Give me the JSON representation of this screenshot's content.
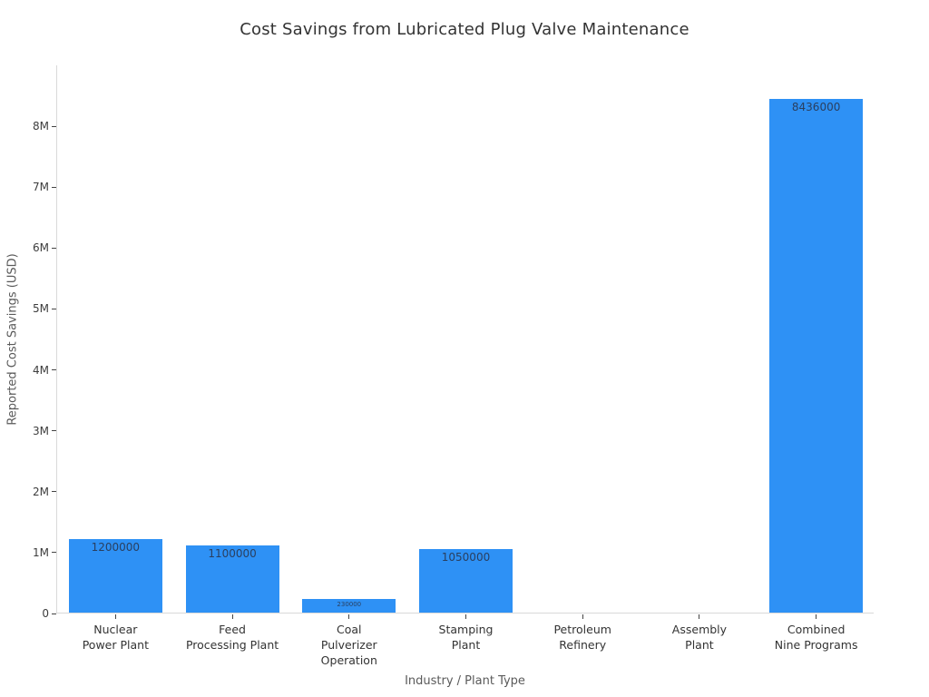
{
  "chart_data": {
    "type": "bar",
    "title": "Cost Savings from Lubricated Plug Valve Maintenance",
    "xlabel": "Industry / Plant Type",
    "ylabel": "Reported Cost Savings (USD)",
    "categories": [
      "Nuclear Power Plant",
      "Feed Processing Plant",
      "Coal Pulverizer Operation",
      "Stamping Plant",
      "Petroleum Refinery",
      "Assembly Plant",
      "Combined Nine Programs"
    ],
    "category_lines": [
      [
        "Nuclear",
        "Power Plant"
      ],
      [
        "Feed",
        "Processing Plant"
      ],
      [
        "Coal",
        "Pulverizer",
        "Operation"
      ],
      [
        "Stamping",
        "Plant"
      ],
      [
        "Petroleum",
        "Refinery"
      ],
      [
        "Assembly",
        "Plant"
      ],
      [
        "Combined",
        "Nine Programs"
      ]
    ],
    "values": [
      1200000,
      1100000,
      230000,
      1050000,
      0,
      0,
      8436000
    ],
    "bar_value_labels": [
      "1200000",
      "1100000",
      "230000",
      "1050000",
      "",
      "",
      "8436000"
    ],
    "yticks": {
      "labels": [
        "0",
        "1M",
        "2M",
        "3M",
        "4M",
        "5M",
        "6M",
        "7M",
        "8M"
      ],
      "values": [
        0,
        1000000,
        2000000,
        3000000,
        4000000,
        5000000,
        6000000,
        7000000,
        8000000
      ]
    },
    "ylim": [
      0,
      9000000
    ],
    "bar_color": "#2e91f5",
    "value_label_color": "#2a3f5f",
    "grid": "off",
    "legend": "none"
  }
}
